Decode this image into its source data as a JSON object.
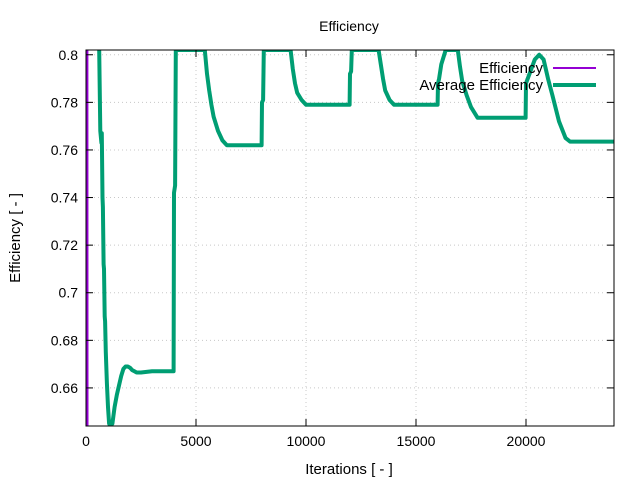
{
  "chart_data": {
    "type": "line",
    "title": "Efficiency",
    "xlabel": "Iterations [ - ]",
    "ylabel": "Efficiency [ - ]",
    "xlim": [
      0,
      24000
    ],
    "ylim": [
      0.644,
      0.802
    ],
    "xticks": [
      0,
      5000,
      10000,
      15000,
      20000
    ],
    "yticks": [
      0.66,
      0.68,
      0.7,
      0.72,
      0.74,
      0.76,
      0.78,
      0.8
    ],
    "xtick_labels": [
      "0",
      "5000",
      "10000",
      "15000",
      "20000"
    ],
    "ytick_labels": [
      "0.66",
      "0.68",
      "0.7",
      "0.72",
      "0.74",
      "0.76",
      "0.78",
      "0.8"
    ],
    "grid": true,
    "legend_position": "top-right",
    "series": [
      {
        "name": "Efficiency",
        "color": "#9400d3",
        "points": [
          [
            50,
            0.644
          ],
          [
            60,
            0.802
          ],
          [
            65,
            0.802
          ],
          [
            70,
            0.644
          ]
        ]
      },
      {
        "name": "Average Efficiency",
        "color": "#009e73",
        "points": [
          [
            600,
            0.802
          ],
          [
            650,
            0.768
          ],
          [
            700,
            0.763
          ],
          [
            720,
            0.767
          ],
          [
            750,
            0.74
          ],
          [
            770,
            0.736
          ],
          [
            800,
            0.712
          ],
          [
            820,
            0.71
          ],
          [
            850,
            0.69
          ],
          [
            870,
            0.688
          ],
          [
            900,
            0.675
          ],
          [
            950,
            0.662
          ],
          [
            1000,
            0.652
          ],
          [
            1050,
            0.645
          ],
          [
            1100,
            0.644
          ],
          [
            1200,
            0.645
          ],
          [
            1300,
            0.652
          ],
          [
            1400,
            0.657
          ],
          [
            1500,
            0.661
          ],
          [
            1600,
            0.665
          ],
          [
            1700,
            0.668
          ],
          [
            1800,
            0.669
          ],
          [
            1900,
            0.669
          ],
          [
            2000,
            0.6685
          ],
          [
            2100,
            0.6675
          ],
          [
            2200,
            0.667
          ],
          [
            2300,
            0.6665
          ],
          [
            2500,
            0.6665
          ],
          [
            3000,
            0.667
          ],
          [
            3500,
            0.667
          ],
          [
            3980,
            0.667
          ],
          [
            4000,
            0.742
          ],
          [
            4050,
            0.745
          ],
          [
            4080,
            0.802
          ],
          [
            5400,
            0.802
          ],
          [
            5500,
            0.792
          ],
          [
            5600,
            0.785
          ],
          [
            5700,
            0.779
          ],
          [
            5800,
            0.774
          ],
          [
            6000,
            0.768
          ],
          [
            6200,
            0.764
          ],
          [
            6400,
            0.762
          ],
          [
            6600,
            0.762
          ],
          [
            7000,
            0.762
          ],
          [
            7500,
            0.762
          ],
          [
            7980,
            0.762
          ],
          [
            8000,
            0.78
          ],
          [
            8050,
            0.781
          ],
          [
            8080,
            0.802
          ],
          [
            9300,
            0.802
          ],
          [
            9400,
            0.794
          ],
          [
            9500,
            0.788
          ],
          [
            9600,
            0.784
          ],
          [
            9800,
            0.781
          ],
          [
            10000,
            0.779
          ],
          [
            10500,
            0.779
          ],
          [
            11000,
            0.779
          ],
          [
            11500,
            0.779
          ],
          [
            11980,
            0.779
          ],
          [
            12000,
            0.792
          ],
          [
            12050,
            0.793
          ],
          [
            12080,
            0.802
          ],
          [
            13300,
            0.802
          ],
          [
            13400,
            0.796
          ],
          [
            13500,
            0.79
          ],
          [
            13600,
            0.785
          ],
          [
            13800,
            0.781
          ],
          [
            14000,
            0.779
          ],
          [
            14500,
            0.779
          ],
          [
            15000,
            0.779
          ],
          [
            15500,
            0.779
          ],
          [
            15980,
            0.779
          ],
          [
            16000,
            0.788
          ],
          [
            16050,
            0.79
          ],
          [
            16150,
            0.796
          ],
          [
            16350,
            0.802
          ],
          [
            16900,
            0.802
          ],
          [
            17000,
            0.795
          ],
          [
            17100,
            0.789
          ],
          [
            17300,
            0.783
          ],
          [
            17500,
            0.778
          ],
          [
            17800,
            0.7735
          ],
          [
            18000,
            0.7735
          ],
          [
            18500,
            0.7735
          ],
          [
            19000,
            0.7735
          ],
          [
            19500,
            0.7735
          ],
          [
            19980,
            0.7735
          ],
          [
            20000,
            0.788
          ],
          [
            20200,
            0.793
          ],
          [
            20400,
            0.798
          ],
          [
            20600,
            0.8
          ],
          [
            20800,
            0.798
          ],
          [
            21000,
            0.79
          ],
          [
            21200,
            0.783
          ],
          [
            21500,
            0.772
          ],
          [
            21800,
            0.765
          ],
          [
            22000,
            0.7635
          ],
          [
            22500,
            0.7635
          ],
          [
            23000,
            0.7635
          ],
          [
            24000,
            0.7635
          ]
        ]
      }
    ]
  }
}
